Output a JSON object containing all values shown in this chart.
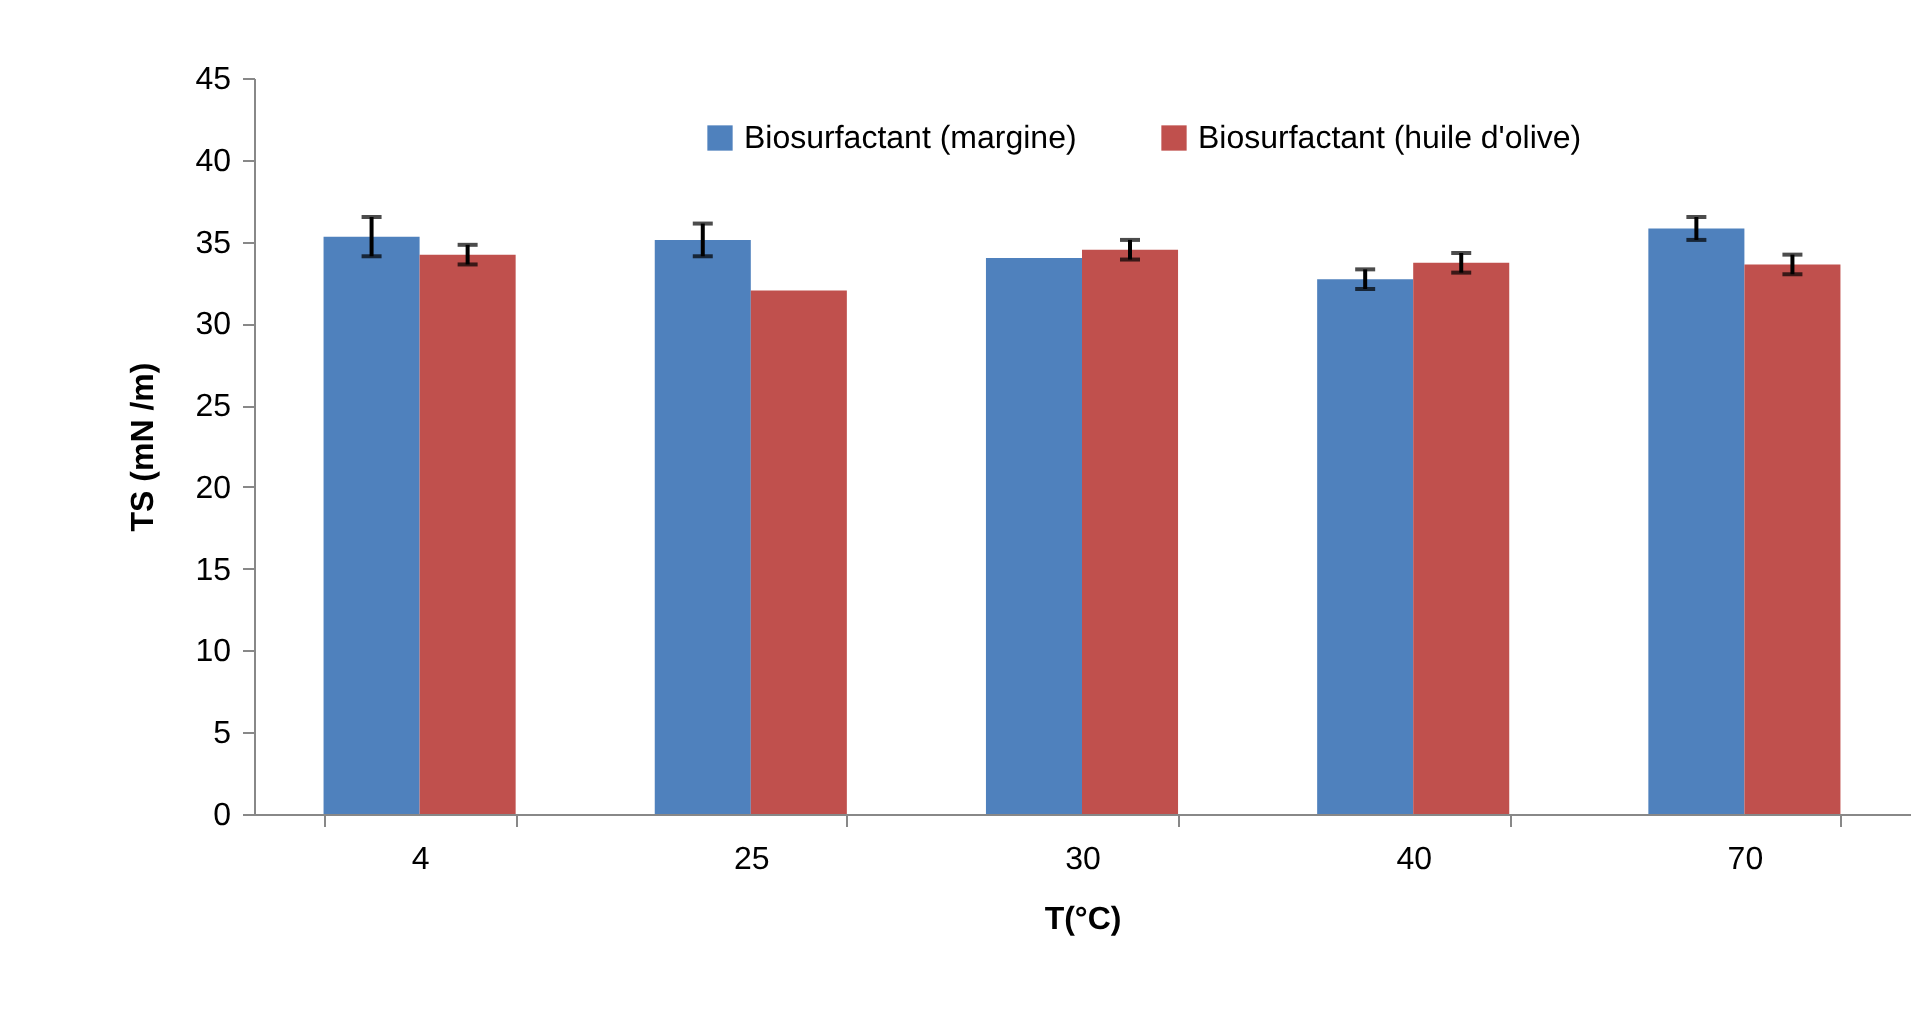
{
  "chart_data": {
    "type": "bar",
    "xlabel": "T(°C)",
    "ylabel": "TS (mN /m)",
    "categories": [
      "4",
      "25",
      "30",
      "40",
      "70"
    ],
    "series": [
      {
        "name": "Biosurfactant (margine)",
        "color": "#4f81bd",
        "values": [
          35.3,
          35.1,
          34.0,
          32.7,
          35.8
        ],
        "errors": [
          1.2,
          1.0,
          null,
          0.6,
          0.7
        ]
      },
      {
        "name": "Biosurfactant (huile d'olive)",
        "color": "#c0504d",
        "values": [
          34.2,
          32.0,
          34.5,
          33.7,
          33.6
        ],
        "errors": [
          0.6,
          null,
          0.6,
          0.6,
          0.6
        ]
      }
    ],
    "ylim": [
      0,
      45
    ],
    "yticks": [
      0,
      5,
      10,
      15,
      20,
      25,
      30,
      35,
      40,
      45
    ],
    "grid": false,
    "legend": "top"
  }
}
